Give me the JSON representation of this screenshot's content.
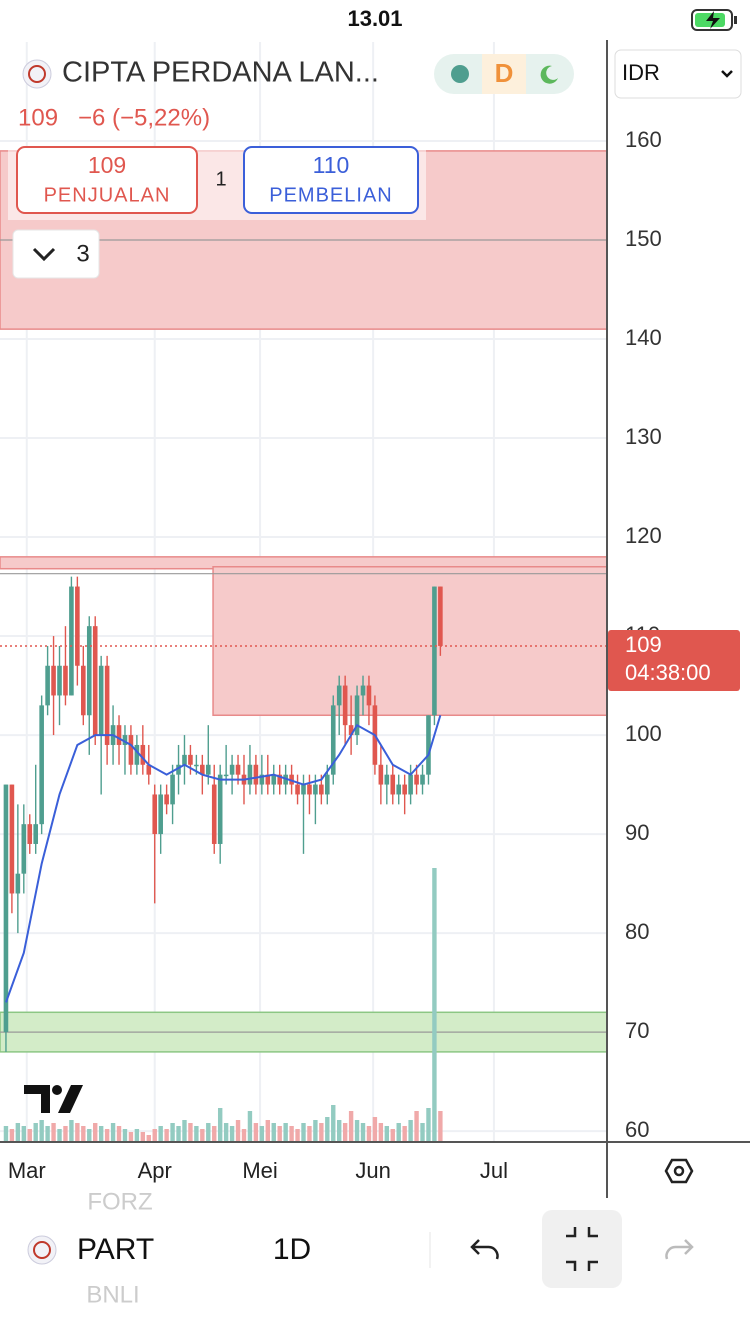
{
  "status_bar": {
    "time": "13.01"
  },
  "header": {
    "name": "CIPTA PERDANA LAN...",
    "price": "109",
    "change": "−6 (−5,22%)",
    "session": "D"
  },
  "order": {
    "sell_price": "109",
    "sell_label": "PENJUALAN",
    "quantity": "1",
    "buy_price": "110",
    "buy_label": "PEMBELIAN"
  },
  "indicators": {
    "count": "3"
  },
  "currency": "IDR",
  "price_label": {
    "countdown": "04:38:00"
  },
  "toolbar": {
    "symbol": "PART",
    "interval": "1D"
  },
  "watchlist": {
    "prev": "FORZ",
    "next": "BNLI"
  },
  "chart_data": {
    "type": "candlestick",
    "ylim": [
      59,
      170
    ],
    "yticks": [
      60,
      70,
      80,
      90,
      100,
      110,
      120,
      130,
      140,
      150,
      160
    ],
    "xlim": [
      -1,
      101
    ],
    "xticks": [
      {
        "value": 3.5,
        "label": "Mar"
      },
      {
        "value": 25,
        "label": "Apr"
      },
      {
        "value": 42.7,
        "label": "Mei"
      },
      {
        "value": 61.7,
        "label": "Jun"
      },
      {
        "value": 82,
        "label": "Jul"
      }
    ],
    "up_color": "#4f9e8f",
    "down_color": "#e0574f",
    "up_volume_color": "#93cbc1",
    "down_volume_color": "#f0a9a9",
    "ma_color": "#3a5fd9",
    "open": [
      70,
      95,
      84,
      86,
      91,
      89,
      91,
      103,
      107,
      104,
      107,
      104,
      115,
      107,
      102,
      111,
      100,
      107,
      99,
      101,
      99,
      100,
      97,
      99,
      97,
      94,
      90,
      94,
      93,
      96,
      97,
      98,
      97,
      97,
      96,
      95,
      89,
      96,
      96,
      97,
      96,
      95,
      97,
      95,
      96,
      95,
      96,
      95,
      96,
      95,
      94,
      95,
      94,
      95,
      94,
      96,
      103,
      105,
      101,
      100,
      104,
      105,
      103,
      97,
      95,
      96,
      94,
      95,
      94,
      96,
      95,
      96,
      102,
      115
    ],
    "high": [
      95,
      95,
      93,
      93,
      92,
      97,
      104,
      109,
      110,
      109,
      111,
      116,
      116,
      109,
      112,
      112,
      108,
      108,
      103,
      102,
      101,
      101,
      100,
      101,
      99,
      95,
      95,
      95,
      97,
      99,
      100,
      99,
      98,
      98,
      101,
      97,
      97,
      99,
      98,
      98,
      98,
      99,
      98,
      98,
      98,
      97,
      97,
      97,
      97,
      96,
      96,
      96,
      96,
      96,
      97,
      104,
      106,
      106,
      104,
      105,
      106,
      106,
      104,
      99,
      97,
      97,
      96,
      96,
      97,
      97,
      97,
      102,
      115,
      115
    ],
    "low": [
      68,
      82,
      80,
      84,
      88,
      88,
      90,
      102,
      100,
      101,
      103,
      104,
      105,
      101,
      98,
      99,
      94,
      97,
      97,
      97,
      96,
      96,
      96,
      96,
      95,
      83,
      88,
      92,
      91,
      94,
      95,
      96,
      96,
      94,
      95,
      88,
      87,
      95,
      94,
      95,
      93,
      94,
      94,
      94,
      94,
      94,
      94,
      94,
      94,
      93,
      88,
      92,
      91,
      93,
      93,
      95,
      100,
      99,
      98,
      99,
      102,
      101,
      96,
      93,
      93,
      93,
      93,
      92,
      93,
      94,
      94,
      95,
      101,
      108
    ],
    "close": [
      95,
      84,
      86,
      91,
      89,
      91,
      103,
      107,
      104,
      107,
      104,
      115,
      107,
      102,
      111,
      100,
      107,
      99,
      101,
      99,
      100,
      97,
      99,
      97,
      96,
      90,
      94,
      93,
      96,
      97,
      98,
      97,
      97,
      96,
      97,
      89,
      96,
      96,
      97,
      96,
      95,
      97,
      95,
      96,
      95,
      96,
      95,
      96,
      95,
      94,
      95,
      94,
      95,
      94,
      96,
      103,
      105,
      101,
      100,
      104,
      105,
      103,
      97,
      95,
      96,
      94,
      95,
      94,
      96,
      95,
      96,
      102,
      115,
      109
    ],
    "volume": [
      5,
      4,
      6,
      5,
      4,
      6,
      7,
      5,
      6,
      4,
      5,
      7,
      6,
      5,
      4,
      6,
      5,
      4,
      6,
      5,
      4,
      3,
      4,
      3,
      2,
      4,
      5,
      4,
      6,
      5,
      7,
      6,
      5,
      4,
      6,
      5,
      11,
      6,
      5,
      7,
      4,
      10,
      6,
      5,
      7,
      6,
      5,
      6,
      5,
      4,
      6,
      5,
      7,
      6,
      8,
      12,
      7,
      6,
      10,
      7,
      6,
      5,
      8,
      6,
      5,
      4,
      6,
      5,
      7,
      10,
      6,
      11,
      91,
      10
    ],
    "ma": {
      "x": [
        0,
        3,
        6,
        9,
        12,
        15,
        18,
        21,
        24,
        27,
        30,
        33,
        36,
        40,
        45,
        50,
        53,
        56,
        59,
        62,
        65,
        68,
        71,
        73
      ],
      "values": [
        73,
        78,
        87,
        94,
        99,
        100,
        100,
        99,
        97,
        96,
        97,
        96,
        95.5,
        95.5,
        96,
        95,
        95.5,
        98,
        101,
        100,
        97,
        96,
        98,
        102
      ]
    },
    "zones": [
      {
        "from": 141,
        "to": 159,
        "color": "#f6caca"
      },
      {
        "from": 116.8,
        "to": 118,
        "color": "#f6caca"
      },
      {
        "from": 102,
        "to": 117,
        "start": 34.8,
        "color": "#f6caca"
      },
      {
        "from": 68,
        "to": 72,
        "color": "#d3ecc8"
      }
    ],
    "levels": [
      150,
      116.3,
      70
    ],
    "last_price": "109"
  }
}
